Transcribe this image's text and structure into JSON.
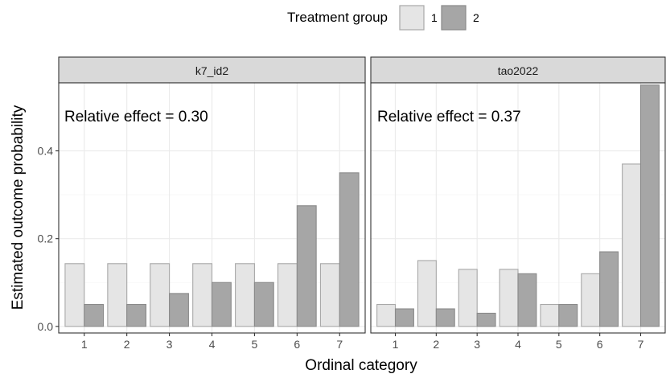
{
  "legend": {
    "title": "Treatment group",
    "items": [
      {
        "label": "1",
        "fill": "#e5e5e5",
        "stroke": "#a8a8a8"
      },
      {
        "label": "2",
        "fill": "#a6a6a6",
        "stroke": "#8a8a8a"
      }
    ]
  },
  "colors": {
    "strip_fill": "#d9d9d9",
    "strip_border": "#333333",
    "grid_major": "#ebebeb",
    "grid_minor": "#f5f5f5",
    "axis_text": "#4d4d4d"
  },
  "chart_data": {
    "type": "bar",
    "xlabel": "Ordinal category",
    "ylabel": "Estimated outcome probability",
    "categories": [
      "1",
      "2",
      "3",
      "4",
      "5",
      "6",
      "7"
    ],
    "y_ticks": [
      0.0,
      0.2,
      0.4
    ],
    "y_tick_labels": [
      "0.0",
      "0.2",
      "0.4"
    ],
    "ylim": [
      -0.015,
      0.555
    ],
    "grid": true,
    "legend_position": "top",
    "panels": [
      {
        "strip": "k7_id2",
        "annotation": "Relative effect = 0.30",
        "series": [
          {
            "name": "1",
            "values": [
              0.143,
              0.143,
              0.143,
              0.143,
              0.143,
              0.143,
              0.143
            ]
          },
          {
            "name": "2",
            "values": [
              0.05,
              0.05,
              0.075,
              0.1,
              0.1,
              0.275,
              0.35
            ]
          }
        ]
      },
      {
        "strip": "tao2022",
        "annotation": "Relative effect = 0.37",
        "series": [
          {
            "name": "1",
            "values": [
              0.05,
              0.15,
              0.13,
              0.13,
              0.05,
              0.12,
              0.37
            ]
          },
          {
            "name": "2",
            "values": [
              0.04,
              0.04,
              0.03,
              0.12,
              0.05,
              0.17,
              0.55
            ]
          }
        ]
      }
    ]
  }
}
